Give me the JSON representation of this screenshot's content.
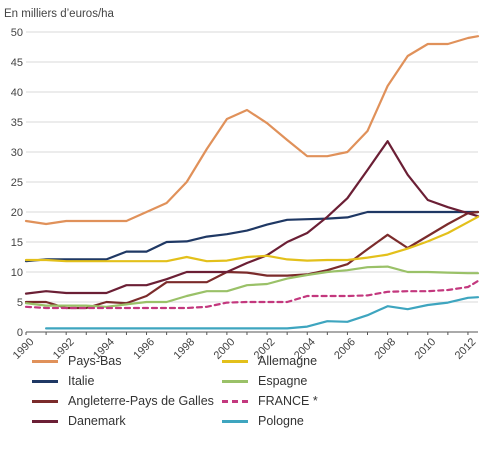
{
  "chart_data": {
    "type": "line",
    "title": "",
    "ylabel": "En milliers d’euros/ha",
    "xlabel": "",
    "ylim": [
      0,
      50
    ],
    "yticks": [
      0,
      5,
      10,
      15,
      20,
      25,
      30,
      35,
      40,
      45,
      50
    ],
    "xlim": [
      1990,
      2012.5
    ],
    "xticks": [
      "1990",
      "1992",
      "1994",
      "1996",
      "1998",
      "2000",
      "2002",
      "2004",
      "2006",
      "2008",
      "2010",
      "2012"
    ],
    "grid": true,
    "legend_position": "bottom",
    "series": [
      {
        "name": "Pays-Bas",
        "color": "#e0915a",
        "dash": "solid",
        "x": [
          1990,
          1991,
          1992,
          1993,
          1994,
          1995,
          1996,
          1997,
          1998,
          1999,
          2000,
          2001,
          2002,
          2003,
          2004,
          2005,
          2006,
          2007,
          2008,
          2009,
          2010,
          2011,
          2012,
          2012.5
        ],
        "y": [
          18.5,
          18,
          18.5,
          18.5,
          18.5,
          18.5,
          20,
          21.5,
          25,
          30.5,
          35.5,
          37,
          34.8,
          32,
          29.3,
          29.3,
          30,
          33.5,
          41,
          46,
          48,
          48,
          49,
          49.3
        ]
      },
      {
        "name": "Italie",
        "color": "#1f3864",
        "dash": "solid",
        "x": [
          1990,
          1991,
          1992,
          1993,
          1994,
          1995,
          1996,
          1997,
          1998,
          1999,
          2000,
          2001,
          2002,
          2003,
          2004,
          2005,
          2006,
          2007,
          2008,
          2009,
          2010,
          2011,
          2012,
          2012.5
        ],
        "y": [
          11.8,
          12.1,
          12.1,
          12.1,
          12.1,
          13.4,
          13.4,
          15,
          15.1,
          15.9,
          16.3,
          16.9,
          17.9,
          18.7,
          18.8,
          18.9,
          19.1,
          20,
          20,
          20,
          20,
          20,
          20,
          20
        ]
      },
      {
        "name": "Angleterre-Pays de Galles",
        "color": "#7b2b2b",
        "dash": "solid",
        "x": [
          1990,
          1991,
          1992,
          1993,
          1994,
          1995,
          1996,
          1997,
          1998,
          1999,
          2000,
          2001,
          2002,
          2003,
          2004,
          2005,
          2006,
          2007,
          2008,
          2009,
          2010,
          2011,
          2012,
          2012.5
        ],
        "y": [
          5,
          5,
          4,
          4,
          5,
          4.8,
          6,
          8.3,
          8.3,
          8.3,
          10,
          9.9,
          9.4,
          9.4,
          9.6,
          10.3,
          11.3,
          13.8,
          16.2,
          14,
          16,
          18,
          19.8,
          20
        ]
      },
      {
        "name": "Danemark",
        "color": "#6b1f35",
        "dash": "solid",
        "x": [
          1990,
          1991,
          1992,
          1993,
          1994,
          1995,
          1996,
          1997,
          1998,
          1999,
          2000,
          2001,
          2002,
          2003,
          2004,
          2005,
          2006,
          2007,
          2008,
          2009,
          2010,
          2011,
          2012,
          2012.5
        ],
        "y": [
          6.4,
          6.8,
          6.5,
          6.5,
          6.5,
          7.8,
          7.8,
          8.8,
          10,
          10,
          10,
          11.5,
          12.8,
          15,
          16.5,
          19.2,
          22.3,
          27,
          31.8,
          26.2,
          22,
          20.8,
          19.8,
          19.3
        ]
      },
      {
        "name": "Allemagne",
        "color": "#e3c01b",
        "dash": "solid",
        "x": [
          1990,
          1991,
          1992,
          1993,
          1994,
          1995,
          1996,
          1997,
          1998,
          1999,
          2000,
          2001,
          2002,
          2003,
          2004,
          2005,
          2006,
          2007,
          2008,
          2009,
          2010,
          2011,
          2012,
          2012.5
        ],
        "y": [
          12,
          12,
          11.8,
          11.8,
          11.8,
          11.8,
          11.8,
          11.8,
          12.5,
          11.8,
          11.9,
          12.5,
          12.7,
          12.1,
          11.9,
          12,
          12,
          12.4,
          12.9,
          13.9,
          15.1,
          16.5,
          18.3,
          19.2
        ]
      },
      {
        "name": "Espagne",
        "color": "#9ac168",
        "dash": "solid",
        "x": [
          1990,
          1991,
          1992,
          1993,
          1994,
          1995,
          1996,
          1997,
          1998,
          1999,
          2000,
          2001,
          2002,
          2003,
          2004,
          2005,
          2006,
          2007,
          2008,
          2009,
          2010,
          2011,
          2012,
          2012.5
        ],
        "y": [
          4.8,
          4.4,
          4.4,
          4.4,
          4.2,
          4.6,
          5,
          5,
          6,
          6.8,
          6.8,
          7.8,
          8,
          8.9,
          9.5,
          10,
          10.3,
          10.8,
          10.9,
          10,
          10,
          9.9,
          9.8,
          9.8
        ]
      },
      {
        "name": "FRANCE *",
        "color": "#c3387e",
        "dash": "dashed",
        "x": [
          1990,
          1991,
          1992,
          1993,
          1994,
          1995,
          1996,
          1997,
          1998,
          1999,
          2000,
          2001,
          2002,
          2003,
          2004,
          2005,
          2006,
          2007,
          2008,
          2009,
          2010,
          2011,
          2012,
          2012.5
        ],
        "y": [
          4.2,
          4,
          4,
          4,
          4,
          4,
          4,
          4,
          4,
          4.2,
          4.9,
          5,
          5,
          5,
          6,
          6,
          6,
          6.1,
          6.7,
          6.8,
          6.8,
          7,
          7.5,
          8.5
        ]
      },
      {
        "name": "Pologne",
        "color": "#3ea5bf",
        "dash": "solid",
        "x": [
          1991,
          1992,
          1993,
          1994,
          1995,
          1996,
          1997,
          1998,
          1999,
          2000,
          2001,
          2002,
          2003,
          2004,
          2005,
          2006,
          2007,
          2008,
          2009,
          2010,
          2011,
          2012,
          2012.5
        ],
        "y": [
          0.6,
          0.6,
          0.6,
          0.6,
          0.6,
          0.6,
          0.6,
          0.6,
          0.6,
          0.6,
          0.6,
          0.6,
          0.6,
          0.9,
          1.8,
          1.7,
          2.8,
          4.3,
          3.8,
          4.5,
          4.9,
          5.7,
          5.8
        ]
      }
    ]
  }
}
